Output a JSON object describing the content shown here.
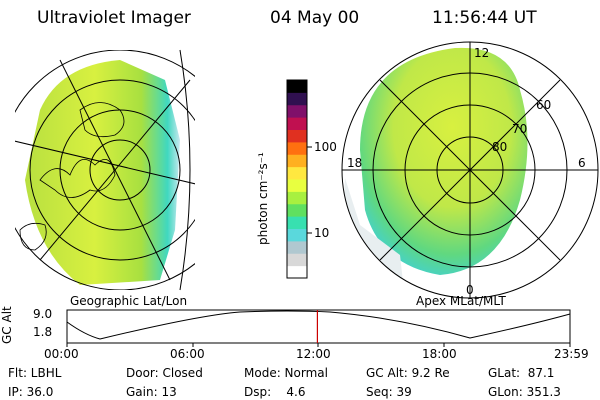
{
  "header": {
    "title": "Ultraviolet Imager",
    "date": "04 May 00",
    "time": "11:56:44 UT"
  },
  "left_panel": {
    "caption": "Geographic Lat/Lon"
  },
  "right_panel": {
    "caption": "Apex MLat/MLT",
    "mlt_labels": [
      "12",
      "18",
      "6",
      "0"
    ],
    "lat_labels": [
      "60",
      "70",
      "80"
    ]
  },
  "colorbar": {
    "unit_label": "photon cm⁻²s⁻¹",
    "tick_labels": [
      "100",
      "10"
    ],
    "colors": [
      "#ffffff",
      "#d8d8d8",
      "#b0c8d0",
      "#5ad8dc",
      "#38e0b0",
      "#60e060",
      "#a8f040",
      "#e8ff40",
      "#ffe840",
      "#ffb020",
      "#ff7010",
      "#e03020",
      "#c01050",
      "#80106a",
      "#301050",
      "#000000"
    ]
  },
  "altitude_plot": {
    "ylabel": "GC Alt",
    "y_ticks": [
      "9.0",
      "1.8"
    ],
    "x_ticks": [
      "00:00",
      "06:00",
      "12:00",
      "18:00",
      "23:59"
    ],
    "current_time_fraction": 0.4979,
    "line_color": "#cc0000"
  },
  "status": {
    "filter": "Flt: LBHL",
    "ip": "IP: 36.0",
    "door": "Door: Closed",
    "gain": "Gain: 13",
    "mode": "Mode: Normal",
    "dsp": "Dsp:    4.6",
    "gc_alt": "GC Alt: 9.2 Re",
    "seq": "Seq: 39",
    "glat": "GLat:  87.1",
    "glon": "GLon: 351.3"
  }
}
